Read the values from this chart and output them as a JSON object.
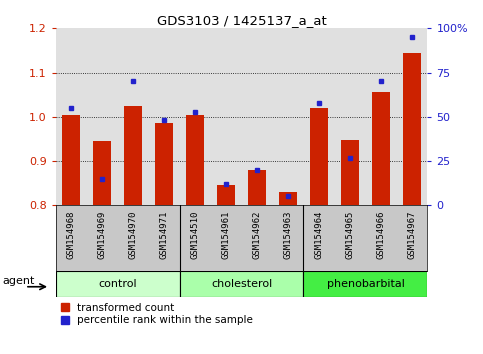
{
  "title": "GDS3103 / 1425137_a_at",
  "samples": [
    "GSM154968",
    "GSM154969",
    "GSM154970",
    "GSM154971",
    "GSM154510",
    "GSM154961",
    "GSM154962",
    "GSM154963",
    "GSM154964",
    "GSM154965",
    "GSM154966",
    "GSM154967"
  ],
  "transformed_count": [
    1.005,
    0.945,
    1.025,
    0.985,
    1.005,
    0.845,
    0.88,
    0.83,
    1.02,
    0.948,
    1.055,
    1.145
  ],
  "percentile_rank": [
    55,
    15,
    70,
    48,
    53,
    12,
    20,
    5,
    58,
    27,
    70,
    95
  ],
  "ylim_left": [
    0.8,
    1.2
  ],
  "ylim_right": [
    0,
    100
  ],
  "yticks_left": [
    0.8,
    0.9,
    1.0,
    1.1,
    1.2
  ],
  "yticks_right": [
    0,
    25,
    50,
    75,
    100
  ],
  "bar_color": "#cc2200",
  "dot_color": "#2222cc",
  "bg_plot": "#e0e0e0",
  "bg_xlabel": "#c8c8c8",
  "bg_control": "#ccffcc",
  "bg_cholesterol": "#aaffaa",
  "bg_phenobarbital": "#44ee44",
  "ylabel_left_color": "#cc2200",
  "ylabel_right_color": "#2222cc",
  "legend_tc": "transformed count",
  "legend_pr": "percentile rank within the sample",
  "agent_label": "agent",
  "group_info": [
    [
      "control",
      0,
      3
    ],
    [
      "cholesterol",
      4,
      7
    ],
    [
      "phenobarbital",
      8,
      11
    ]
  ]
}
